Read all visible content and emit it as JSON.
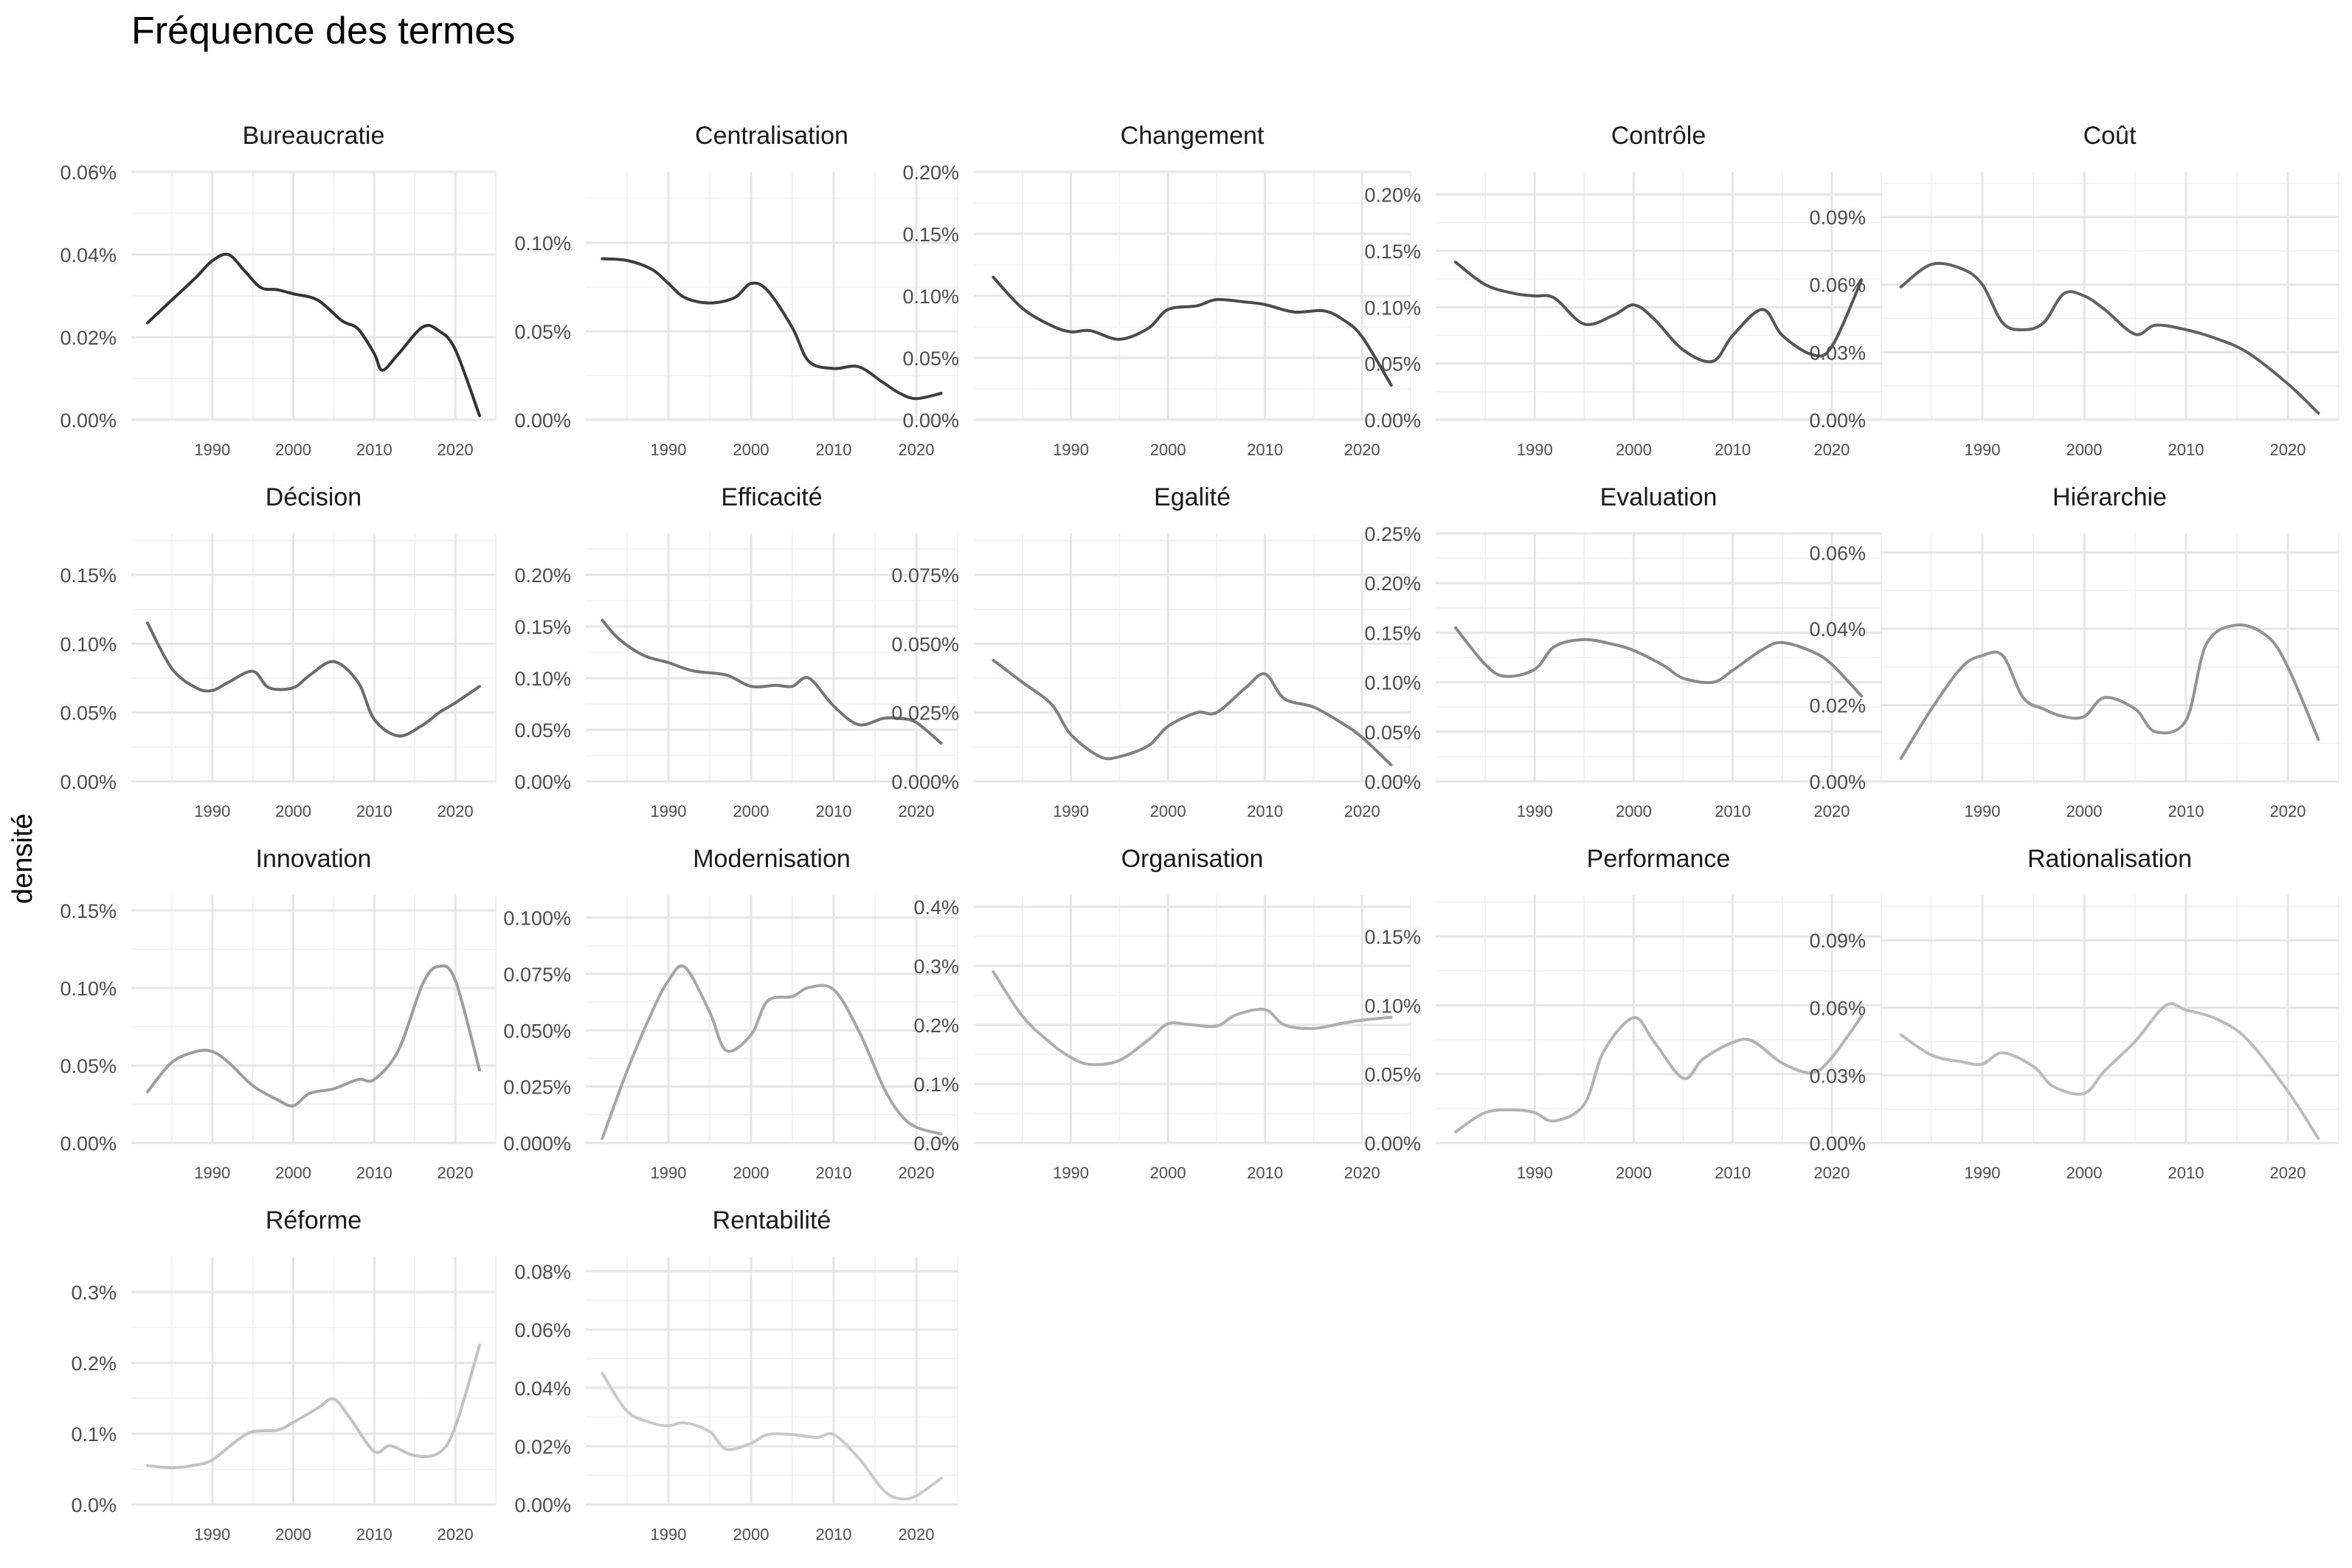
{
  "title": "Fréquence des termes",
  "ylabel": "densité",
  "colors": {
    "grid_major": "#e6e6e6",
    "grid_minor": "#f0f0f0",
    "text": "#4d4d4d"
  },
  "chart_data": {
    "type": "line",
    "xlabel": "",
    "ylabel": "densité",
    "x_ticks": [
      1990,
      2000,
      2010,
      2020
    ],
    "xlim": [
      1980,
      2025
    ],
    "facets": [
      {
        "name": "Bureaucratie",
        "color": "#333333",
        "ylim": [
          0,
          0.06
        ],
        "yticks": [
          0,
          0.02,
          0.04,
          0.06
        ],
        "ytick_labels": [
          "0.00%",
          "0.02%",
          "0.04%",
          "0.06%"
        ],
        "x": [
          1982,
          1985,
          1988,
          1990,
          1992,
          1994,
          1996,
          1998,
          2000,
          2003,
          2006,
          2008,
          2010,
          2011,
          2013,
          2016,
          2018,
          2020,
          2023
        ],
        "y": [
          0.0235,
          0.029,
          0.0345,
          0.0385,
          0.04,
          0.036,
          0.032,
          0.0315,
          0.0305,
          0.029,
          0.024,
          0.022,
          0.016,
          0.012,
          0.016,
          0.0225,
          0.0215,
          0.017,
          0.001
        ]
      },
      {
        "name": "Centralisation",
        "color": "#3d3d3d",
        "ylim": [
          0,
          0.14
        ],
        "yticks": [
          0,
          0.05,
          0.1
        ],
        "ytick_labels": [
          "0.00%",
          "0.05%",
          "0.10%"
        ],
        "x": [
          1982,
          1985,
          1988,
          1990,
          1992,
          1995,
          1998,
          2000,
          2002,
          2005,
          2007,
          2010,
          2013,
          2016,
          2018,
          2020,
          2023
        ],
        "y": [
          0.091,
          0.09,
          0.085,
          0.077,
          0.069,
          0.066,
          0.069,
          0.077,
          0.073,
          0.052,
          0.033,
          0.029,
          0.03,
          0.021,
          0.015,
          0.012,
          0.015
        ]
      },
      {
        "name": "Changement",
        "color": "#4a4a4a",
        "ylim": [
          0,
          0.2
        ],
        "yticks": [
          0,
          0.05,
          0.1,
          0.15,
          0.2
        ],
        "ytick_labels": [
          "0.00%",
          "0.05%",
          "0.10%",
          "0.15%",
          "0.20%"
        ],
        "x": [
          1982,
          1985,
          1988,
          1990,
          1992,
          1995,
          1998,
          2000,
          2003,
          2005,
          2008,
          2010,
          2013,
          2016,
          2018,
          2020,
          2023
        ],
        "y": [
          0.115,
          0.09,
          0.076,
          0.071,
          0.072,
          0.065,
          0.074,
          0.089,
          0.092,
          0.097,
          0.095,
          0.093,
          0.087,
          0.088,
          0.081,
          0.067,
          0.028
        ]
      },
      {
        "name": "Contrôle",
        "color": "#555555",
        "ylim": [
          0,
          0.22
        ],
        "yticks": [
          0,
          0.05,
          0.1,
          0.15,
          0.2
        ],
        "ytick_labels": [
          "0.00%",
          "0.05%",
          "0.10%",
          "0.15%",
          "0.20%"
        ],
        "x": [
          1982,
          1985,
          1988,
          1990,
          1992,
          1995,
          1998,
          2000,
          2002,
          2005,
          2008,
          2010,
          2013,
          2015,
          2018,
          2020,
          2023
        ],
        "y": [
          0.14,
          0.12,
          0.112,
          0.11,
          0.108,
          0.085,
          0.093,
          0.102,
          0.09,
          0.062,
          0.052,
          0.075,
          0.098,
          0.075,
          0.058,
          0.065,
          0.124
        ]
      },
      {
        "name": "Coût",
        "color": "#616161",
        "ylim": [
          0,
          0.11
        ],
        "yticks": [
          0,
          0.03,
          0.06,
          0.09
        ],
        "ytick_labels": [
          "0.00%",
          "0.03%",
          "0.06%",
          "0.09%"
        ],
        "x": [
          1982,
          1985,
          1988,
          1990,
          1992,
          1994,
          1996,
          1998,
          2000,
          2002,
          2005,
          2007,
          2010,
          2013,
          2016,
          2020,
          2023
        ],
        "y": [
          0.059,
          0.069,
          0.067,
          0.06,
          0.043,
          0.04,
          0.043,
          0.056,
          0.055,
          0.049,
          0.038,
          0.042,
          0.04,
          0.036,
          0.03,
          0.016,
          0.003
        ]
      },
      {
        "name": "Décision",
        "color": "#6b6b6b",
        "ylim": [
          0,
          0.18
        ],
        "yticks": [
          0,
          0.05,
          0.1,
          0.15
        ],
        "ytick_labels": [
          "0.00%",
          "0.05%",
          "0.10%",
          "0.15%"
        ],
        "x": [
          1982,
          1985,
          1988,
          1990,
          1992,
          1995,
          1997,
          2000,
          2002,
          2005,
          2008,
          2010,
          2013,
          2016,
          2018,
          2020,
          2023
        ],
        "y": [
          0.115,
          0.082,
          0.068,
          0.066,
          0.072,
          0.08,
          0.068,
          0.068,
          0.077,
          0.087,
          0.072,
          0.045,
          0.033,
          0.041,
          0.05,
          0.057,
          0.069
        ]
      },
      {
        "name": "Efficacité",
        "color": "#757575",
        "ylim": [
          0,
          0.24
        ],
        "yticks": [
          0,
          0.05,
          0.1,
          0.15,
          0.2
        ],
        "ytick_labels": [
          "0.00%",
          "0.05%",
          "0.10%",
          "0.15%",
          "0.20%"
        ],
        "x": [
          1982,
          1984,
          1987,
          1990,
          1993,
          1997,
          2000,
          2003,
          2005,
          2007,
          2010,
          2013,
          2016,
          2018,
          2020,
          2023
        ],
        "y": [
          0.156,
          0.138,
          0.122,
          0.115,
          0.107,
          0.103,
          0.092,
          0.093,
          0.092,
          0.1,
          0.073,
          0.055,
          0.061,
          0.061,
          0.057,
          0.037
        ]
      },
      {
        "name": "Egalité",
        "color": "#808080",
        "ylim": [
          0,
          0.09
        ],
        "yticks": [
          0,
          0.025,
          0.05,
          0.075
        ],
        "ytick_labels": [
          "0.000%",
          "0.025%",
          "0.050%",
          "0.075%"
        ],
        "x": [
          1982,
          1985,
          1988,
          1990,
          1993,
          1995,
          1998,
          2000,
          2003,
          2005,
          2008,
          2010,
          2012,
          2015,
          2018,
          2020,
          2023
        ],
        "y": [
          0.044,
          0.036,
          0.028,
          0.017,
          0.009,
          0.009,
          0.013,
          0.02,
          0.025,
          0.025,
          0.034,
          0.039,
          0.03,
          0.027,
          0.021,
          0.016,
          0.006
        ]
      },
      {
        "name": "Evaluation",
        "color": "#8a8a8a",
        "ylim": [
          0,
          0.25
        ],
        "yticks": [
          0,
          0.05,
          0.1,
          0.15,
          0.2,
          0.25
        ],
        "ytick_labels": [
          "0.00%",
          "0.05%",
          "0.10%",
          "0.15%",
          "0.20%",
          "0.25%"
        ],
        "x": [
          1982,
          1985,
          1987,
          1990,
          1992,
          1995,
          1998,
          2000,
          2003,
          2005,
          2008,
          2010,
          2013,
          2015,
          2018,
          2020,
          2023
        ],
        "y": [
          0.155,
          0.118,
          0.106,
          0.113,
          0.136,
          0.143,
          0.138,
          0.132,
          0.117,
          0.104,
          0.1,
          0.112,
          0.133,
          0.14,
          0.131,
          0.118,
          0.086
        ]
      },
      {
        "name": "Hiérarchie",
        "color": "#939393",
        "ylim": [
          0,
          0.065
        ],
        "yticks": [
          0,
          0.02,
          0.04,
          0.06
        ],
        "ytick_labels": [
          "0.00%",
          "0.02%",
          "0.04%",
          "0.06%"
        ],
        "x": [
          1982,
          1985,
          1988,
          1990,
          1992,
          1994,
          1996,
          1998,
          2000,
          2002,
          2005,
          2007,
          2010,
          2012,
          2015,
          2018,
          2020,
          2023
        ],
        "y": [
          0.006,
          0.019,
          0.03,
          0.033,
          0.033,
          0.022,
          0.019,
          0.017,
          0.017,
          0.022,
          0.019,
          0.013,
          0.016,
          0.036,
          0.041,
          0.038,
          0.03,
          0.011
        ]
      },
      {
        "name": "Innovation",
        "color": "#9d9d9d",
        "ylim": [
          0,
          0.16
        ],
        "yticks": [
          0,
          0.05,
          0.1,
          0.15
        ],
        "ytick_labels": [
          "0.00%",
          "0.05%",
          "0.10%",
          "0.15%"
        ],
        "x": [
          1982,
          1985,
          1988,
          1990,
          1992,
          1995,
          1998,
          2000,
          2002,
          2005,
          2008,
          2010,
          2013,
          2016,
          2018,
          2020,
          2023
        ],
        "y": [
          0.033,
          0.052,
          0.059,
          0.059,
          0.052,
          0.037,
          0.028,
          0.024,
          0.032,
          0.035,
          0.041,
          0.041,
          0.06,
          0.103,
          0.114,
          0.105,
          0.047
        ]
      },
      {
        "name": "Modernisation",
        "color": "#a6a6a6",
        "ylim": [
          0,
          0.11
        ],
        "yticks": [
          0,
          0.025,
          0.05,
          0.075,
          0.1
        ],
        "ytick_labels": [
          "0.000%",
          "0.025%",
          "0.050%",
          "0.075%",
          "0.100%"
        ],
        "x": [
          1982,
          1985,
          1988,
          1990,
          1992,
          1995,
          1997,
          2000,
          2002,
          2005,
          2007,
          2010,
          2013,
          2016,
          2018,
          2020,
          2023
        ],
        "y": [
          0.002,
          0.032,
          0.058,
          0.072,
          0.078,
          0.058,
          0.041,
          0.048,
          0.063,
          0.065,
          0.069,
          0.068,
          0.05,
          0.025,
          0.013,
          0.007,
          0.004
        ]
      },
      {
        "name": "Organisation",
        "color": "#aeaeae",
        "ylim": [
          0,
          0.42
        ],
        "yticks": [
          0,
          0.1,
          0.2,
          0.3,
          0.4
        ],
        "ytick_labels": [
          "0.0%",
          "0.1%",
          "0.2%",
          "0.3%",
          "0.4%"
        ],
        "x": [
          1982,
          1985,
          1988,
          1990,
          1992,
          1995,
          1998,
          2000,
          2002,
          2005,
          2007,
          2010,
          2012,
          2015,
          2018,
          2020,
          2023
        ],
        "y": [
          0.29,
          0.215,
          0.168,
          0.145,
          0.133,
          0.14,
          0.175,
          0.202,
          0.201,
          0.198,
          0.217,
          0.226,
          0.2,
          0.194,
          0.203,
          0.208,
          0.213
        ]
      },
      {
        "name": "Performance",
        "color": "#b3b3b3",
        "ylim": [
          0,
          0.18
        ],
        "yticks": [
          0,
          0.05,
          0.1,
          0.15
        ],
        "ytick_labels": [
          "0.00%",
          "0.05%",
          "0.10%",
          "0.15%"
        ],
        "x": [
          1982,
          1985,
          1988,
          1990,
          1992,
          1995,
          1997,
          2000,
          2002,
          2005,
          2007,
          2010,
          2012,
          2015,
          2018,
          2020,
          2023
        ],
        "y": [
          0.008,
          0.022,
          0.024,
          0.022,
          0.016,
          0.028,
          0.067,
          0.091,
          0.074,
          0.047,
          0.061,
          0.073,
          0.074,
          0.058,
          0.051,
          0.062,
          0.092
        ]
      },
      {
        "name": "Rationalisation",
        "color": "#bbbbbb",
        "ylim": [
          0,
          0.11
        ],
        "yticks": [
          0,
          0.03,
          0.06,
          0.09
        ],
        "ytick_labels": [
          "0.00%",
          "0.03%",
          "0.06%",
          "0.09%"
        ],
        "x": [
          1982,
          1985,
          1988,
          1990,
          1992,
          1995,
          1997,
          2000,
          2002,
          2005,
          2008,
          2010,
          2013,
          2016,
          2020,
          2023
        ],
        "y": [
          0.048,
          0.039,
          0.036,
          0.035,
          0.04,
          0.034,
          0.025,
          0.022,
          0.032,
          0.045,
          0.061,
          0.059,
          0.055,
          0.046,
          0.023,
          0.002
        ]
      },
      {
        "name": "Réforme",
        "color": "#c2c2c2",
        "ylim": [
          0,
          0.35
        ],
        "yticks": [
          0,
          0.1,
          0.2,
          0.3
        ],
        "ytick_labels": [
          "0.0%",
          "0.1%",
          "0.2%",
          "0.3%"
        ],
        "x": [
          1982,
          1985,
          1988,
          1990,
          1993,
          1995,
          1998,
          2000,
          2003,
          2005,
          2007,
          2010,
          2012,
          2015,
          2018,
          2020,
          2023
        ],
        "y": [
          0.055,
          0.052,
          0.056,
          0.063,
          0.09,
          0.103,
          0.105,
          0.116,
          0.136,
          0.149,
          0.122,
          0.075,
          0.083,
          0.069,
          0.073,
          0.11,
          0.225
        ]
      },
      {
        "name": "Rentabilité",
        "color": "#c9c9c9",
        "ylim": [
          0,
          0.085
        ],
        "yticks": [
          0,
          0.02,
          0.04,
          0.06,
          0.08
        ],
        "ytick_labels": [
          "0.00%",
          "0.02%",
          "0.04%",
          "0.06%",
          "0.08%"
        ],
        "x": [
          1982,
          1985,
          1988,
          1990,
          1992,
          1995,
          1997,
          2000,
          2002,
          2005,
          2008,
          2010,
          2013,
          2016,
          2018,
          2020,
          2023
        ],
        "y": [
          0.045,
          0.032,
          0.028,
          0.027,
          0.028,
          0.025,
          0.019,
          0.021,
          0.024,
          0.024,
          0.023,
          0.024,
          0.016,
          0.005,
          0.002,
          0.003,
          0.009
        ]
      }
    ]
  }
}
